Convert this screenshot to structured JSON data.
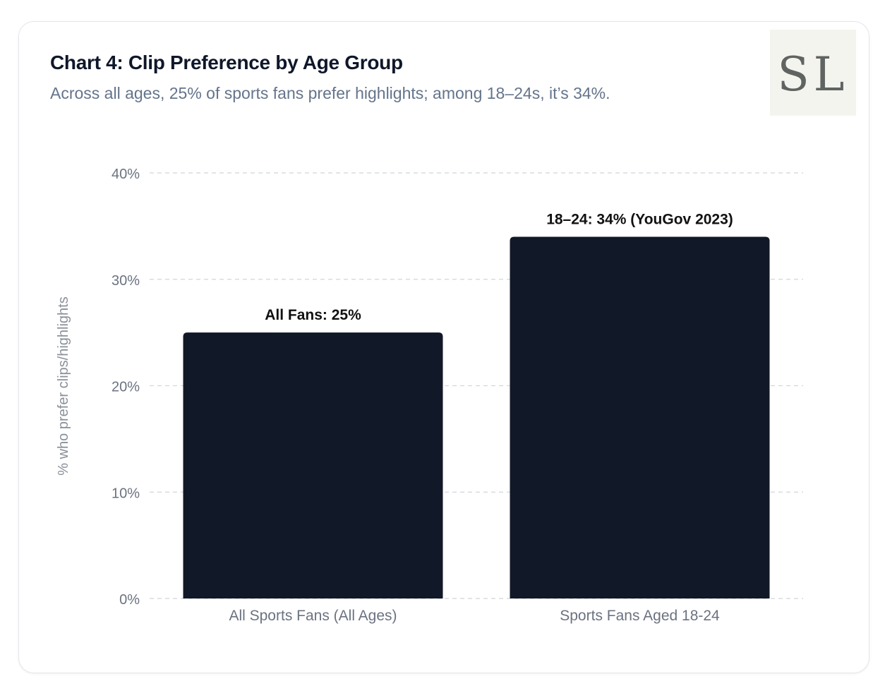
{
  "card": {
    "title": "Chart 4: Clip Preference by Age Group",
    "subtitle": "Across all ages, 25% of sports fans prefer highlights; among 18–24s, it’s 34%.",
    "logo_text": "SL"
  },
  "colors": {
    "bar": "#111827",
    "grid": "#d1d5db",
    "tick_text": "#6b7280",
    "label_text": "#111111"
  },
  "chart_data": {
    "type": "bar",
    "categories": [
      "All Sports Fans (All Ages)",
      "Sports Fans Aged 18-24"
    ],
    "values": [
      25,
      34
    ],
    "data_labels": [
      "All Fans: 25%",
      "18–24: 34% (YouGov 2023)"
    ],
    "title": "",
    "xlabel": "",
    "ylabel": "% who prefer clips/highlights",
    "ylim": [
      0,
      40
    ],
    "yticks": [
      0,
      10,
      20,
      30,
      40
    ],
    "ytick_labels": [
      "0%",
      "10%",
      "20%",
      "30%",
      "40%"
    ],
    "grid": true,
    "legend": "none"
  }
}
